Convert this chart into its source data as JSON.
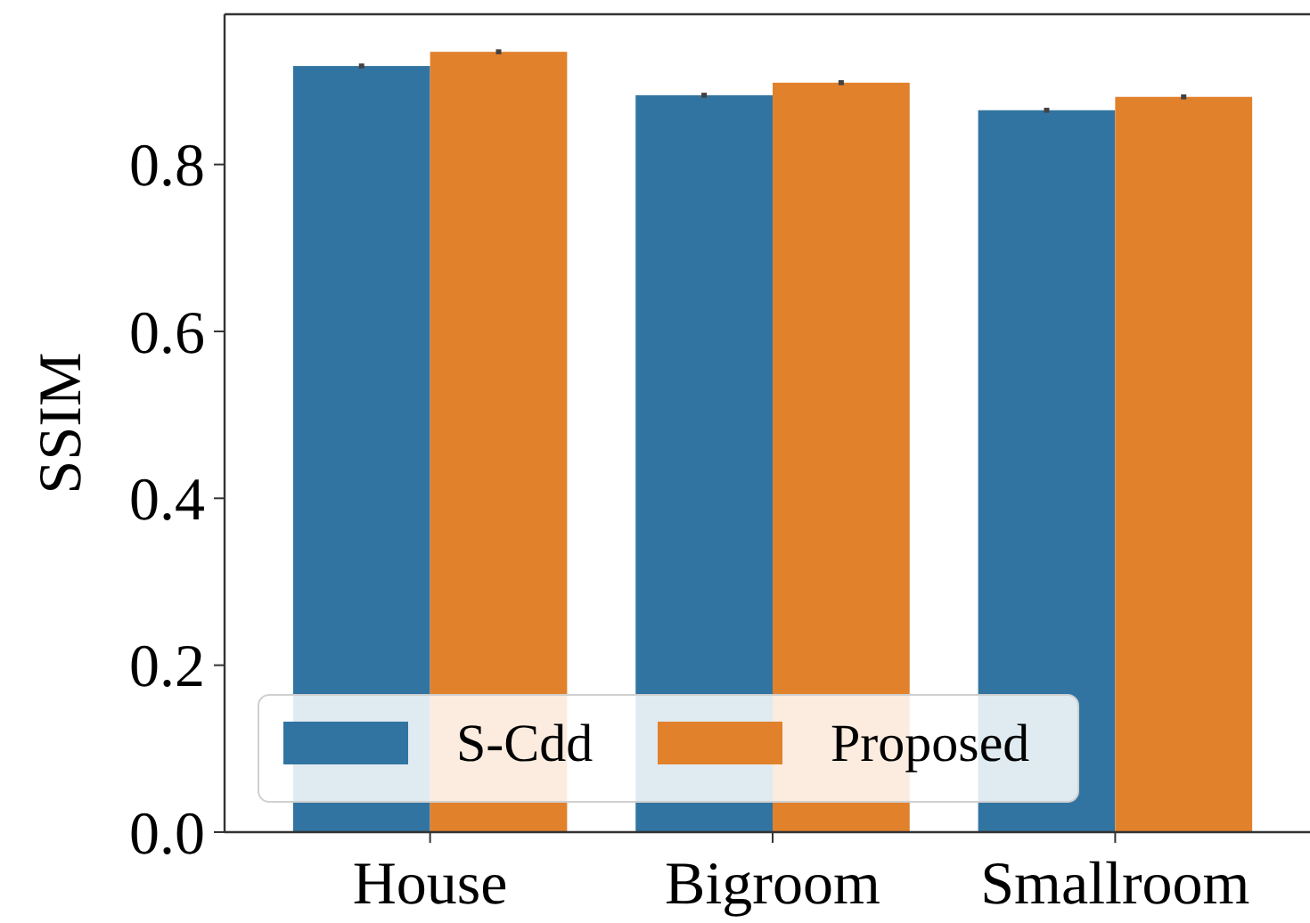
{
  "chart_data": {
    "type": "bar",
    "ylabel": "SSIM",
    "categories": [
      "House",
      "Bigroom",
      "Smallroom"
    ],
    "series": [
      {
        "name": "S-Cdd",
        "color": "#3274a1",
        "values": [
          0.918,
          0.883,
          0.865
        ],
        "errors": [
          0.003,
          0.003,
          0.003
        ]
      },
      {
        "name": "Proposed",
        "color": "#e1812c",
        "values": [
          0.935,
          0.898,
          0.881
        ],
        "errors": [
          0.003,
          0.003,
          0.003
        ]
      }
    ],
    "ylim": [
      0,
      0.98
    ],
    "yticks": [
      {
        "value": 0,
        "label": "0.0"
      },
      {
        "value": 0.2,
        "label": "0.2"
      },
      {
        "value": 0.4,
        "label": "0.4"
      },
      {
        "value": 0.6,
        "label": "0.6"
      },
      {
        "value": 0.8,
        "label": "0.8"
      }
    ],
    "grid": false,
    "legend": "bottom left"
  }
}
